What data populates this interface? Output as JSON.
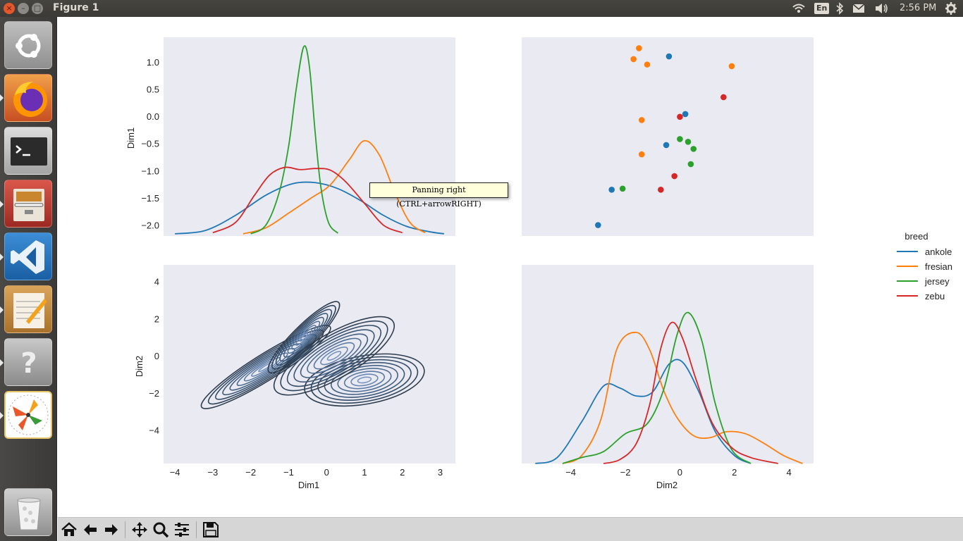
{
  "window": {
    "title": "Figure 1",
    "close_glyph": "×",
    "min_glyph": "–",
    "max_glyph": "□"
  },
  "tray": {
    "lang": "En",
    "time": "2:56 PM",
    "icons": [
      "wifi-icon",
      "bluetooth-icon",
      "mail-icon",
      "volume-icon",
      "settings-gear-icon"
    ]
  },
  "launcher": [
    "ubuntu-dash",
    "firefox",
    "terminal",
    "file-manager",
    "vscode",
    "text-editor",
    "help",
    "color-picker-app",
    "trash"
  ],
  "tooltip": "Panning right (CTRL+arrowRIGHT)",
  "legend": {
    "title": "breed",
    "items": [
      {
        "label": "ankole",
        "color": "#1f77b4"
      },
      {
        "label": "fresian",
        "color": "#ff7f0e"
      },
      {
        "label": "jersey",
        "color": "#2ca02c"
      },
      {
        "label": "zebu",
        "color": "#d62728"
      }
    ]
  },
  "chart_data": [
    {
      "type": "line",
      "panel": "top-left",
      "ylabel": "Dim1",
      "xlabel": "",
      "yticks": [
        "1.0",
        "0.5",
        "0.0",
        "−0.5",
        "−1.0",
        "−1.5",
        "−2.0"
      ],
      "xlim": [
        -4.3,
        3.4
      ],
      "ylim": [
        -2.2,
        1.45
      ],
      "note_kde": "density curves of Dim1 per breed",
      "series": [
        {
          "name": "ankole",
          "color": "#1f77b4",
          "x": [
            -4.0,
            -3.2,
            -2.4,
            -1.6,
            -0.9,
            -0.3,
            0.3,
            0.9,
            1.5,
            2.1,
            2.7,
            3.1
          ],
          "y": [
            -2.16,
            -2.1,
            -1.82,
            -1.45,
            -1.24,
            -1.22,
            -1.33,
            -1.55,
            -1.82,
            -2.02,
            -2.12,
            -2.16
          ]
        },
        {
          "name": "fresian",
          "color": "#ff7f0e",
          "x": [
            -2.2,
            -1.6,
            -1.0,
            -0.4,
            0.1,
            0.6,
            1.0,
            1.4,
            1.8,
            2.2,
            2.6
          ],
          "y": [
            -2.16,
            -2.05,
            -1.78,
            -1.5,
            -1.26,
            -0.8,
            -0.45,
            -0.72,
            -1.4,
            -1.95,
            -2.14
          ]
        },
        {
          "name": "jersey",
          "color": "#2ca02c",
          "x": [
            -2.0,
            -1.6,
            -1.25,
            -1.0,
            -0.8,
            -0.6,
            -0.45,
            -0.3,
            -0.15,
            0.05,
            0.3
          ],
          "y": [
            -2.16,
            -2.0,
            -1.4,
            -0.55,
            0.5,
            1.28,
            0.9,
            -0.3,
            -1.3,
            -1.95,
            -2.15
          ]
        },
        {
          "name": "zebu",
          "color": "#d62728",
          "x": [
            -3.0,
            -2.4,
            -1.9,
            -1.5,
            -1.1,
            -0.7,
            -0.3,
            0.1,
            0.5,
            1.0,
            1.5,
            2.0
          ],
          "y": [
            -2.14,
            -1.95,
            -1.45,
            -1.08,
            -0.94,
            -0.98,
            -0.96,
            -0.99,
            -1.2,
            -1.6,
            -2.0,
            -2.14
          ]
        }
      ]
    },
    {
      "type": "scatter",
      "panel": "top-right",
      "xlabel": "",
      "ylabel": "",
      "xlim": [
        -5.8,
        4.9
      ],
      "ylim": [
        -2.2,
        1.45
      ],
      "series": [
        {
          "name": "ankole",
          "color": "#1f77b4",
          "x": [
            -0.4,
            0.2,
            -0.5,
            -2.5,
            -3.0
          ],
          "y": [
            1.1,
            0.04,
            -0.53,
            -1.35,
            -2.0
          ]
        },
        {
          "name": "fresian",
          "color": "#ff7f0e",
          "x": [
            -1.5,
            -1.7,
            -1.2,
            1.9,
            -1.4,
            -1.4
          ],
          "y": [
            1.25,
            1.05,
            0.95,
            0.92,
            -0.07,
            -0.7
          ]
        },
        {
          "name": "jersey",
          "color": "#2ca02c",
          "x": [
            0.0,
            0.3,
            0.5,
            0.4,
            -2.1
          ],
          "y": [
            -0.42,
            -0.47,
            -0.6,
            -0.88,
            -1.33
          ]
        },
        {
          "name": "zebu",
          "color": "#d62728",
          "x": [
            1.6,
            0.0,
            -0.2,
            -0.7
          ],
          "y": [
            0.35,
            -0.01,
            -1.1,
            -1.35
          ]
        }
      ]
    },
    {
      "type": "contour",
      "panel": "bottom-left",
      "xlabel": "Dim1",
      "ylabel": "Dim2",
      "xticks": [
        "−4",
        "−3",
        "−2",
        "−1",
        "0",
        "1",
        "2",
        "3"
      ],
      "yticks": [
        "4",
        "2",
        "0",
        "−2",
        "−4"
      ],
      "xlim": [
        -4.3,
        3.4
      ],
      "ylim": [
        -5.8,
        4.9
      ],
      "blobs": [
        {
          "cx": -1.6,
          "cy": -0.6,
          "rx": 2.0,
          "ry": 0.7,
          "angle": -32
        },
        {
          "cx": 1.0,
          "cy": -1.3,
          "rx": 1.6,
          "ry": 1.3,
          "angle": -10
        },
        {
          "cx": -0.6,
          "cy": 1.0,
          "rx": 1.3,
          "ry": 0.6,
          "angle": -45
        },
        {
          "cx": 0.2,
          "cy": 0.0,
          "rx": 1.8,
          "ry": 1.2,
          "angle": -30
        }
      ]
    },
    {
      "type": "line",
      "panel": "bottom-right",
      "xlabel": "Dim2",
      "ylabel": "",
      "xticks": [
        "−4",
        "−2",
        "0",
        "2",
        "4"
      ],
      "xlim": [
        -5.8,
        4.9
      ],
      "ylim": [
        0,
        1
      ],
      "series": [
        {
          "name": "ankole",
          "color": "#1f77b4",
          "x": [
            -5.3,
            -4.5,
            -3.6,
            -2.8,
            -2.2,
            -1.6,
            -1.0,
            -0.4,
            0.1,
            0.7,
            1.3,
            2.0,
            2.6
          ],
          "y": [
            0.0,
            0.03,
            0.21,
            0.39,
            0.38,
            0.34,
            0.36,
            0.5,
            0.51,
            0.36,
            0.16,
            0.04,
            0.0
          ]
        },
        {
          "name": "fresian",
          "color": "#ff7f0e",
          "x": [
            -4.3,
            -3.6,
            -2.9,
            -2.3,
            -1.6,
            -1.1,
            -0.6,
            -0.1,
            0.5,
            1.1,
            1.7,
            2.4,
            3.1,
            3.8,
            4.5
          ],
          "y": [
            0.0,
            0.04,
            0.22,
            0.58,
            0.66,
            0.57,
            0.37,
            0.23,
            0.14,
            0.13,
            0.16,
            0.15,
            0.1,
            0.04,
            0.0
          ]
        },
        {
          "name": "jersey",
          "color": "#2ca02c",
          "x": [
            -4.3,
            -3.6,
            -2.8,
            -2.0,
            -1.2,
            -0.6,
            -0.1,
            0.3,
            0.8,
            1.3,
            1.9,
            2.6
          ],
          "y": [
            0.0,
            0.03,
            0.06,
            0.15,
            0.2,
            0.37,
            0.65,
            0.76,
            0.62,
            0.3,
            0.07,
            0.0
          ]
        },
        {
          "name": "zebu",
          "color": "#d62728",
          "x": [
            -2.8,
            -2.2,
            -1.6,
            -1.1,
            -0.7,
            -0.3,
            0.1,
            0.6,
            1.2,
            1.9,
            2.6,
            3.6
          ],
          "y": [
            0.0,
            0.02,
            0.1,
            0.3,
            0.58,
            0.71,
            0.63,
            0.42,
            0.2,
            0.08,
            0.03,
            0.0
          ]
        }
      ]
    }
  ],
  "axes_text": {
    "tl_ylabel": "Dim1",
    "bl_ylabel": "Dim2",
    "bl_xlabel": "Dim1",
    "br_xlabel": "Dim2",
    "tl_yticks": [
      "1.0",
      "0.5",
      "0.0",
      "−0.5",
      "−1.0",
      "−1.5",
      "−2.0"
    ],
    "bl_yticks": [
      "4",
      "2",
      "0",
      "−2",
      "−4"
    ],
    "bl_xticks": [
      "−4",
      "−3",
      "−2",
      "−1",
      "0",
      "1",
      "2",
      "3"
    ],
    "br_xticks": [
      "−4",
      "−2",
      "0",
      "2",
      "4"
    ]
  },
  "toolbar": [
    "home-icon",
    "back-icon",
    "forward-icon",
    "pan-icon",
    "zoom-icon",
    "subplots-icon",
    "save-icon"
  ],
  "colors": {
    "axes_bg": "#eaeaf2",
    "contour_dark": "#2f3d4e",
    "contour_blue": "#3a7dbf"
  }
}
